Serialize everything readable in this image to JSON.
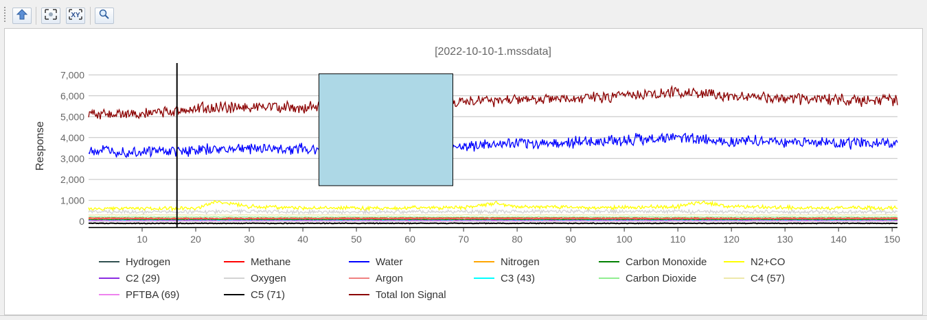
{
  "toolbar": {
    "buttons": [
      {
        "name": "upload-button",
        "icon": "upload-arrow-icon"
      },
      {
        "name": "zoom-fit-button",
        "icon": "zoom-fit-icon"
      },
      {
        "name": "zoom-xy-button",
        "icon": "zoom-xy-icon",
        "label": "XY"
      },
      {
        "name": "zoom-button",
        "icon": "magnifier-icon"
      }
    ]
  },
  "chart_data": {
    "type": "line",
    "title": "[2022-10-10-1.mssdata]",
    "xlabel": "",
    "ylabel": "Response",
    "xlim": [
      0,
      151
    ],
    "ylim": [
      -300,
      7500
    ],
    "x_ticks": [
      10,
      20,
      30,
      40,
      50,
      60,
      70,
      80,
      90,
      100,
      110,
      120,
      130,
      140,
      150
    ],
    "x_tick_labels": [
      "10",
      "20",
      "30",
      "40",
      "50",
      "60",
      "70",
      "80",
      "90",
      "100",
      "110",
      "120",
      "130",
      "140",
      "150"
    ],
    "y_ticks": [
      0,
      1000,
      2000,
      3000,
      4000,
      5000,
      6000,
      7000
    ],
    "y_tick_labels": [
      "0",
      "1,000",
      "2,000",
      "3,000",
      "4,000",
      "5,000",
      "6,000",
      "7,000"
    ],
    "grid": "horizontal",
    "legend_position": "bottom",
    "cursor_x": 16.5,
    "overlay_box": {
      "x": [
        43,
        68
      ],
      "y": [
        1700,
        7050
      ],
      "color": "#add8e6"
    },
    "series": [
      {
        "name": "Hydrogen",
        "color": "#2f4f4f",
        "x": [
          0,
          151
        ],
        "y": [
          60,
          60
        ]
      },
      {
        "name": "Methane",
        "color": "#ff0000",
        "x": [
          0,
          25,
          50,
          75,
          100,
          125,
          151
        ],
        "y": [
          150,
          140,
          150,
          160,
          150,
          145,
          150
        ]
      },
      {
        "name": "Water",
        "color": "#0000ff",
        "x": [
          0,
          10,
          20,
          30,
          40,
          50,
          60,
          70,
          80,
          90,
          100,
          110,
          120,
          130,
          140,
          151
        ],
        "y": [
          3400,
          3350,
          3400,
          3500,
          3450,
          3500,
          3550,
          3600,
          3700,
          3750,
          3900,
          4000,
          3850,
          3800,
          3750,
          3700
        ]
      },
      {
        "name": "Nitrogen",
        "color": "#ffa500",
        "x": [
          0,
          151
        ],
        "y": [
          100,
          100
        ]
      },
      {
        "name": "Carbon Monoxide",
        "color": "#008000",
        "x": [
          0,
          151
        ],
        "y": [
          80,
          80
        ]
      },
      {
        "name": "N2+CO",
        "color": "#ffff00",
        "x": [
          0,
          10,
          20,
          24,
          30,
          40,
          50,
          60,
          70,
          76,
          80,
          90,
          100,
          110,
          114,
          120,
          130,
          140,
          151
        ],
        "y": [
          600,
          620,
          620,
          950,
          700,
          650,
          620,
          640,
          650,
          850,
          700,
          660,
          650,
          700,
          900,
          700,
          650,
          640,
          640
        ]
      },
      {
        "name": "C2 (29)",
        "color": "#8a2be2",
        "x": [
          0,
          151
        ],
        "y": [
          40,
          40
        ]
      },
      {
        "name": "Oxygen",
        "color": "#d3d3d3",
        "x": [
          0,
          25,
          50,
          75,
          100,
          125,
          151
        ],
        "y": [
          450,
          460,
          440,
          470,
          460,
          450,
          440
        ]
      },
      {
        "name": "Argon",
        "color": "#f08080",
        "x": [
          0,
          151
        ],
        "y": [
          120,
          120
        ]
      },
      {
        "name": "C3 (43)",
        "color": "#00ffff",
        "x": [
          0,
          151
        ],
        "y": [
          30,
          30
        ]
      },
      {
        "name": "Carbon Dioxide",
        "color": "#90ee90",
        "x": [
          0,
          151
        ],
        "y": [
          200,
          200
        ]
      },
      {
        "name": "C4 (57)",
        "color": "#eee8aa",
        "x": [
          0,
          151
        ],
        "y": [
          300,
          300
        ]
      },
      {
        "name": "PFTBA (69)",
        "color": "#ee82ee",
        "x": [
          0,
          151
        ],
        "y": [
          20,
          20
        ]
      },
      {
        "name": "C5 (71)",
        "color": "#000000",
        "x": [
          0,
          151
        ],
        "y": [
          -100,
          -100
        ]
      },
      {
        "name": "Total Ion Signal",
        "color": "#8b0000",
        "x": [
          0,
          10,
          20,
          30,
          40,
          50,
          60,
          70,
          80,
          90,
          100,
          110,
          120,
          130,
          140,
          151
        ],
        "y": [
          5100,
          5150,
          5350,
          5500,
          5400,
          5500,
          5650,
          5700,
          5800,
          5850,
          6000,
          6200,
          5950,
          5900,
          5800,
          5750
        ]
      }
    ]
  }
}
